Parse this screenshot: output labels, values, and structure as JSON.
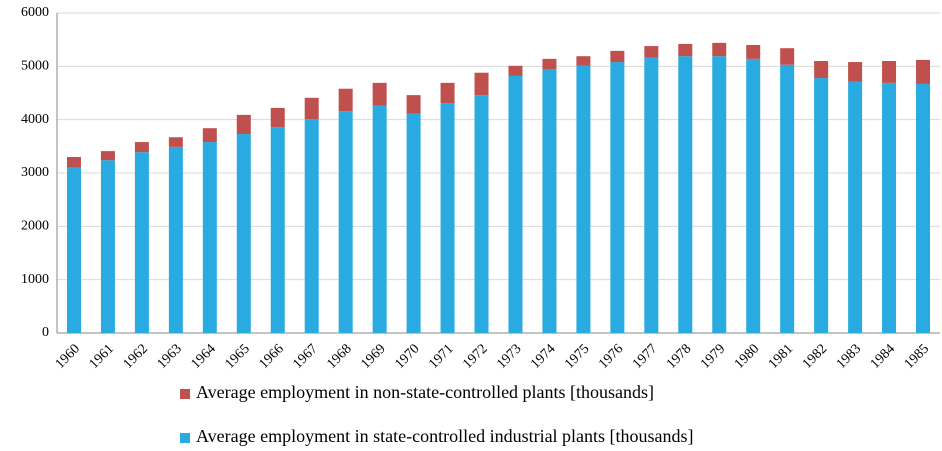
{
  "chart_data": {
    "type": "stacked_bar",
    "categories": [
      "1960",
      "1961",
      "1962",
      "1963",
      "1964",
      "1965",
      "1966",
      "1967",
      "1968",
      "1969",
      "1970",
      "1971",
      "1972",
      "1973",
      "1974",
      "1975",
      "1976",
      "1977",
      "1978",
      "1979",
      "1980",
      "1981",
      "1982",
      "1983",
      "1984",
      "1985"
    ],
    "series": [
      {
        "name": "Average employment in state-controlled industrial plants [thousands]",
        "color": "#29abe2",
        "values": [
          3100,
          3240,
          3390,
          3490,
          3580,
          3730,
          3860,
          4010,
          4160,
          4260,
          4110,
          4310,
          4460,
          4820,
          4950,
          5010,
          5080,
          5160,
          5190,
          5190,
          5140,
          5030,
          4780,
          4710,
          4690,
          4670
        ]
      },
      {
        "name": "Average employment in non-state-controlled plants [thousands]",
        "color": "#c0504d",
        "values": [
          200,
          170,
          190,
          180,
          260,
          360,
          360,
          400,
          420,
          430,
          350,
          380,
          420,
          190,
          190,
          180,
          210,
          220,
          230,
          250,
          260,
          310,
          320,
          370,
          410,
          450
        ]
      }
    ],
    "ylim": [
      0,
      6000
    ],
    "yticks": [
      0,
      1000,
      2000,
      3000,
      4000,
      5000,
      6000
    ],
    "grid": true
  }
}
